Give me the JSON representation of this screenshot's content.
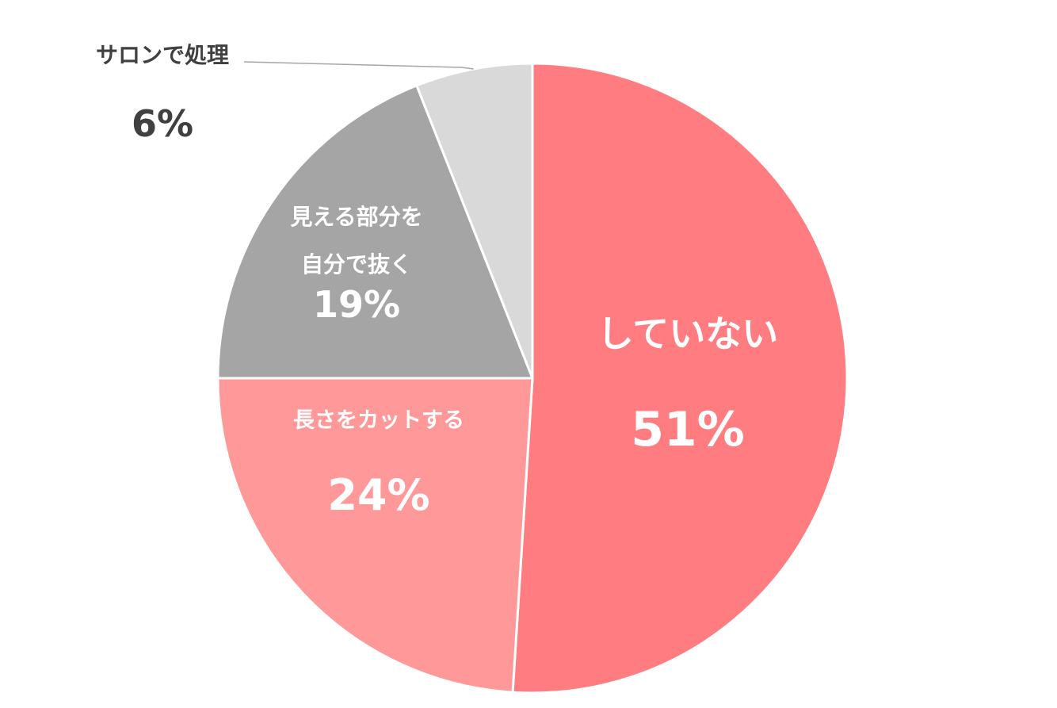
{
  "chart_data": {
    "type": "pie",
    "start_angle_deg": 0,
    "direction": "clockwise",
    "slices": [
      {
        "label": "していない",
        "label_lines": [
          "していない"
        ],
        "value": 51,
        "value_label": "51%",
        "color": "#ff7c80",
        "label_color": "#ffffff"
      },
      {
        "label": "長さをカットする",
        "label_lines": [
          "長さをカットする"
        ],
        "value": 24,
        "value_label": "24%",
        "color": "#ff9999",
        "label_color": "#ffffff"
      },
      {
        "label": "見える部分を自分で抜く",
        "label_lines": [
          "見える部分を",
          "自分で抜く"
        ],
        "value": 19,
        "value_label": "19%",
        "color": "#a5a5a5",
        "label_color": "#ffffff"
      },
      {
        "label": "サロンで処理",
        "label_lines": [
          "サロンで処理"
        ],
        "value": 6,
        "value_label": "6%",
        "color": "#d9d9d9",
        "label_color": "#404040",
        "external_label": true
      }
    ],
    "legend": "none",
    "slice_border_color": "#ffffff",
    "leader_line_color": "#a6a6a6"
  }
}
